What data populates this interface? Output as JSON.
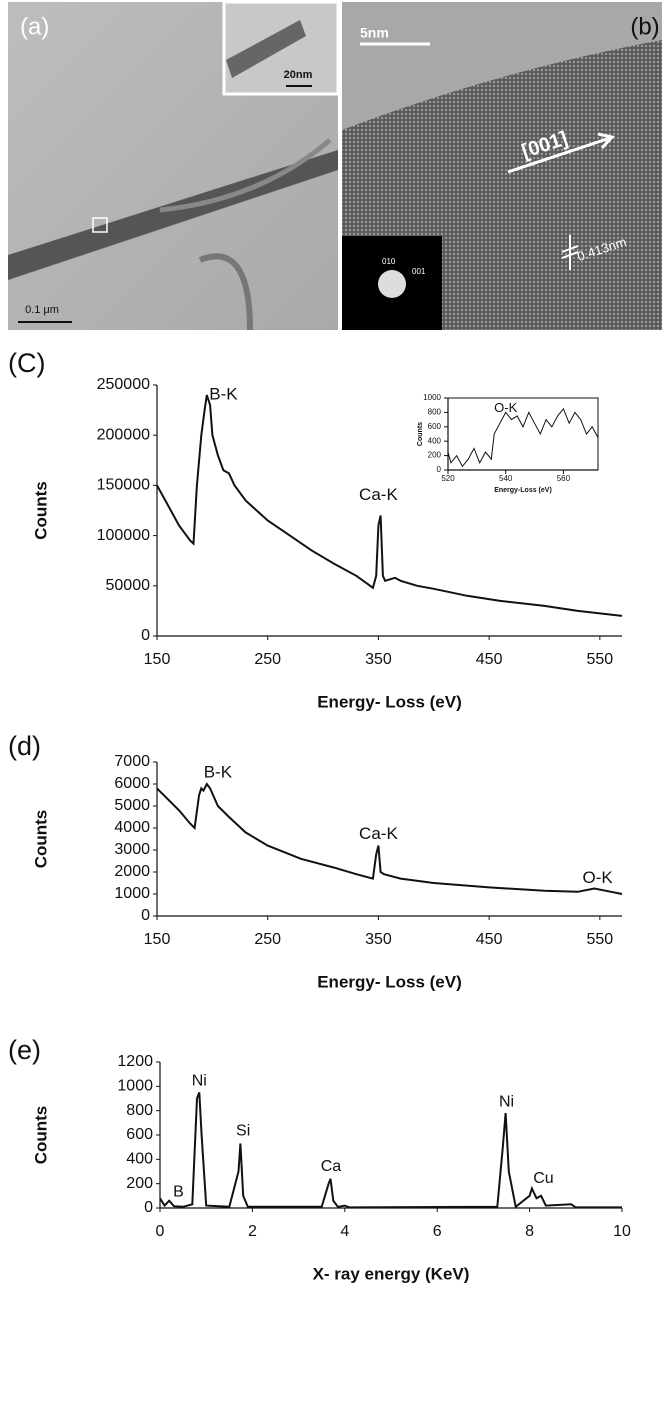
{
  "images": {
    "a": {
      "label": "(a)",
      "inset_scale": "20nm",
      "scale": "0.1 μm"
    },
    "b": {
      "label": "(b)",
      "scale": "5nm",
      "direction": "[001]",
      "spacing": "0.413nm",
      "diffraction_labels": [
        "010",
        "001"
      ]
    }
  },
  "chart_data": [
    {
      "type": "line",
      "panel_label": "(C)",
      "xlabel": "Energy- Loss (eV)",
      "ylabel": "Counts",
      "color": "#111111",
      "x": [
        150,
        160,
        170,
        180,
        183,
        186,
        190,
        193,
        195,
        198,
        200,
        205,
        210,
        215,
        220,
        230,
        250,
        270,
        290,
        310,
        330,
        340,
        345,
        348,
        350,
        352,
        354,
        356,
        365,
        370,
        385,
        400,
        430,
        460,
        500,
        530,
        570
      ],
      "values": [
        150000,
        130000,
        110000,
        95000,
        92000,
        150000,
        200000,
        225000,
        240000,
        230000,
        200000,
        180000,
        165000,
        162000,
        150000,
        135000,
        115000,
        100000,
        85000,
        72000,
        60000,
        52000,
        48000,
        60000,
        110000,
        120000,
        60000,
        55000,
        58000,
        55000,
        50000,
        47000,
        40000,
        35000,
        30000,
        25000,
        20000
      ],
      "xlim": [
        150,
        570
      ],
      "ylim": [
        0,
        250000
      ],
      "xticks": [
        150,
        250,
        350,
        450,
        550
      ],
      "yticks": [
        0,
        50000,
        100000,
        150000,
        200000,
        250000
      ],
      "annotations": [
        {
          "text": "B-K",
          "x": 210,
          "y": 240000
        },
        {
          "text": "Ca-K",
          "x": 350,
          "y": 140000
        }
      ]
    },
    {
      "type": "line",
      "xlabel": "Energy-Loss (eV)",
      "ylabel": "Counts",
      "color": "#111111",
      "x": [
        520,
        521,
        523,
        525,
        527,
        529,
        531,
        533,
        535,
        536,
        538,
        540,
        542,
        544,
        546,
        548,
        550,
        552,
        554,
        556,
        558,
        560,
        562,
        564,
        566,
        568,
        570,
        572
      ],
      "values": [
        250,
        100,
        200,
        50,
        150,
        300,
        100,
        250,
        150,
        500,
        650,
        800,
        700,
        750,
        600,
        800,
        650,
        500,
        700,
        600,
        750,
        850,
        650,
        800,
        700,
        500,
        600,
        450
      ],
      "xlim": [
        520,
        572
      ],
      "ylim": [
        0,
        1000
      ],
      "xticks": [
        520,
        540,
        560
      ],
      "yticks": [
        0,
        200,
        400,
        600,
        800,
        1000
      ],
      "box": true,
      "annotations": [
        {
          "text": "O-K",
          "x": 540,
          "y": 850
        }
      ]
    },
    {
      "type": "line",
      "panel_label": "(d)",
      "xlabel": "Energy- Loss (eV)",
      "ylabel": "Counts",
      "color": "#111111",
      "x": [
        150,
        160,
        170,
        180,
        184,
        188,
        190,
        192,
        195,
        198,
        205,
        215,
        230,
        250,
        280,
        310,
        330,
        345,
        348,
        350,
        352,
        355,
        370,
        400,
        450,
        500,
        530,
        545,
        555,
        570
      ],
      "values": [
        5800,
        5300,
        4800,
        4200,
        4000,
        5500,
        5800,
        5700,
        6000,
        5800,
        5000,
        4500,
        3800,
        3200,
        2600,
        2200,
        1900,
        1700,
        2800,
        3200,
        2000,
        1900,
        1700,
        1500,
        1300,
        1150,
        1100,
        1250,
        1150,
        1000
      ],
      "xlim": [
        150,
        570
      ],
      "ylim": [
        0,
        7000
      ],
      "xticks": [
        150,
        250,
        350,
        450,
        550
      ],
      "yticks": [
        0,
        1000,
        2000,
        3000,
        4000,
        5000,
        6000,
        7000
      ],
      "annotations": [
        {
          "text": "B-K",
          "x": 205,
          "y": 6500
        },
        {
          "text": "Ca-K",
          "x": 350,
          "y": 3700
        },
        {
          "text": "O-K",
          "x": 548,
          "y": 1700
        }
      ]
    },
    {
      "type": "line",
      "panel_label": "(e)",
      "xlabel": "X- ray energy (KeV)",
      "ylabel": "Counts",
      "color": "#111111",
      "x": [
        0,
        0.1,
        0.2,
        0.3,
        0.5,
        0.7,
        0.8,
        0.85,
        0.9,
        1.0,
        1.5,
        1.7,
        1.74,
        1.8,
        1.9,
        3.5,
        3.65,
        3.69,
        3.75,
        3.85,
        4.0,
        4.1,
        7.3,
        7.42,
        7.48,
        7.55,
        7.7,
        8.0,
        8.05,
        8.15,
        8.25,
        8.35,
        8.9,
        9.0,
        10
      ],
      "values": [
        80,
        20,
        60,
        15,
        10,
        30,
        900,
        950,
        600,
        20,
        10,
        300,
        530,
        100,
        10,
        10,
        200,
        240,
        60,
        10,
        20,
        5,
        10,
        500,
        780,
        300,
        10,
        100,
        160,
        80,
        100,
        20,
        30,
        5,
        5
      ],
      "xlim": [
        0,
        10
      ],
      "ylim": [
        0,
        1200
      ],
      "xticks": [
        0,
        2,
        4,
        6,
        8,
        10
      ],
      "yticks": [
        0,
        200,
        400,
        600,
        800,
        1000,
        1200
      ],
      "annotations": [
        {
          "text": "B",
          "x": 0.4,
          "y": 130
        },
        {
          "text": "Ni",
          "x": 0.85,
          "y": 1040
        },
        {
          "text": "Si",
          "x": 1.8,
          "y": 630
        },
        {
          "text": "Ca",
          "x": 3.7,
          "y": 340
        },
        {
          "text": "Ni",
          "x": 7.5,
          "y": 870
        },
        {
          "text": "Cu",
          "x": 8.3,
          "y": 240
        }
      ]
    }
  ]
}
